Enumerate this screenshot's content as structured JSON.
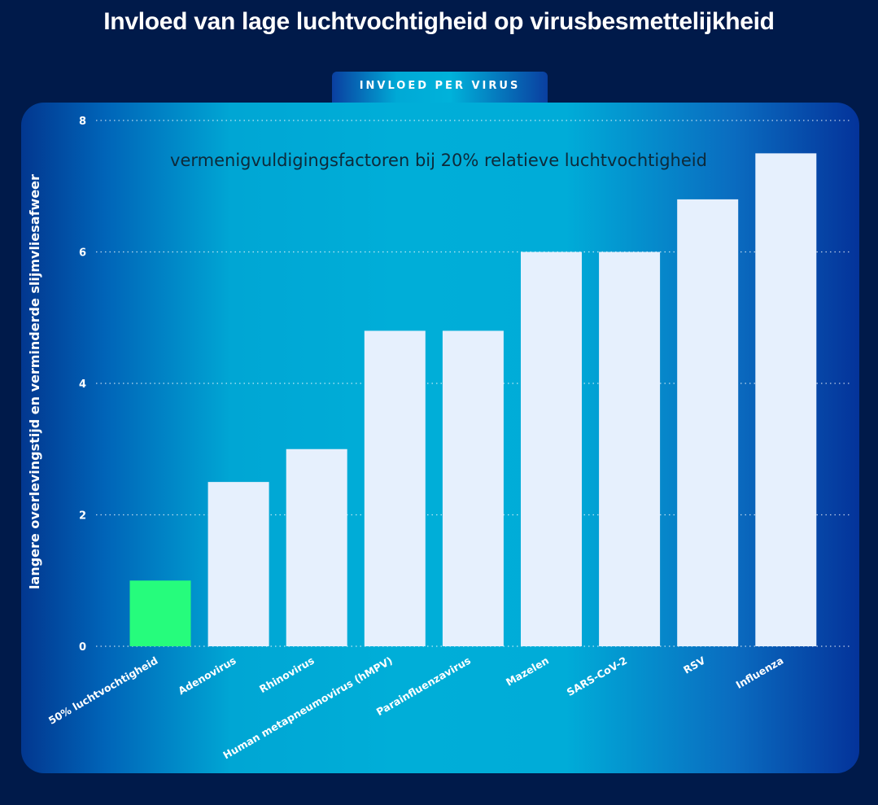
{
  "title": "Invloed van lage luchtvochtigheid op virusbesmettelijkheid",
  "tab_label": "INVLOED PER VIRUS",
  "colors": {
    "background": "#001a4a",
    "bar": "#e6f0fd",
    "highlight_bar": "#26fc7c",
    "text": "#ffffff",
    "annotation": "#0d2a3a"
  },
  "chart_data": {
    "type": "bar",
    "title": "",
    "annotation": "vermenigvuldigingsfactoren bij 20% relatieve luchtvochtigheid",
    "xlabel": "",
    "ylabel": "langere overlevingstijd en verminderde slijmvliesafweer",
    "ylim": [
      0,
      8
    ],
    "yticks": [
      "0",
      "2",
      "4",
      "6",
      "8"
    ],
    "grid": true,
    "categories": [
      "50% luchtvochtigheid",
      "Adenovirus",
      "Rhinovirus",
      "Human metapneumovirus (hMPV)",
      "Parainfluenzavirus",
      "Mazelen",
      "SARS-CoV-2",
      "RSV",
      "Influenza"
    ],
    "values": [
      1,
      2.5,
      3,
      4.8,
      4.8,
      6,
      6,
      6.8,
      7.5
    ],
    "highlight_index": 0
  }
}
